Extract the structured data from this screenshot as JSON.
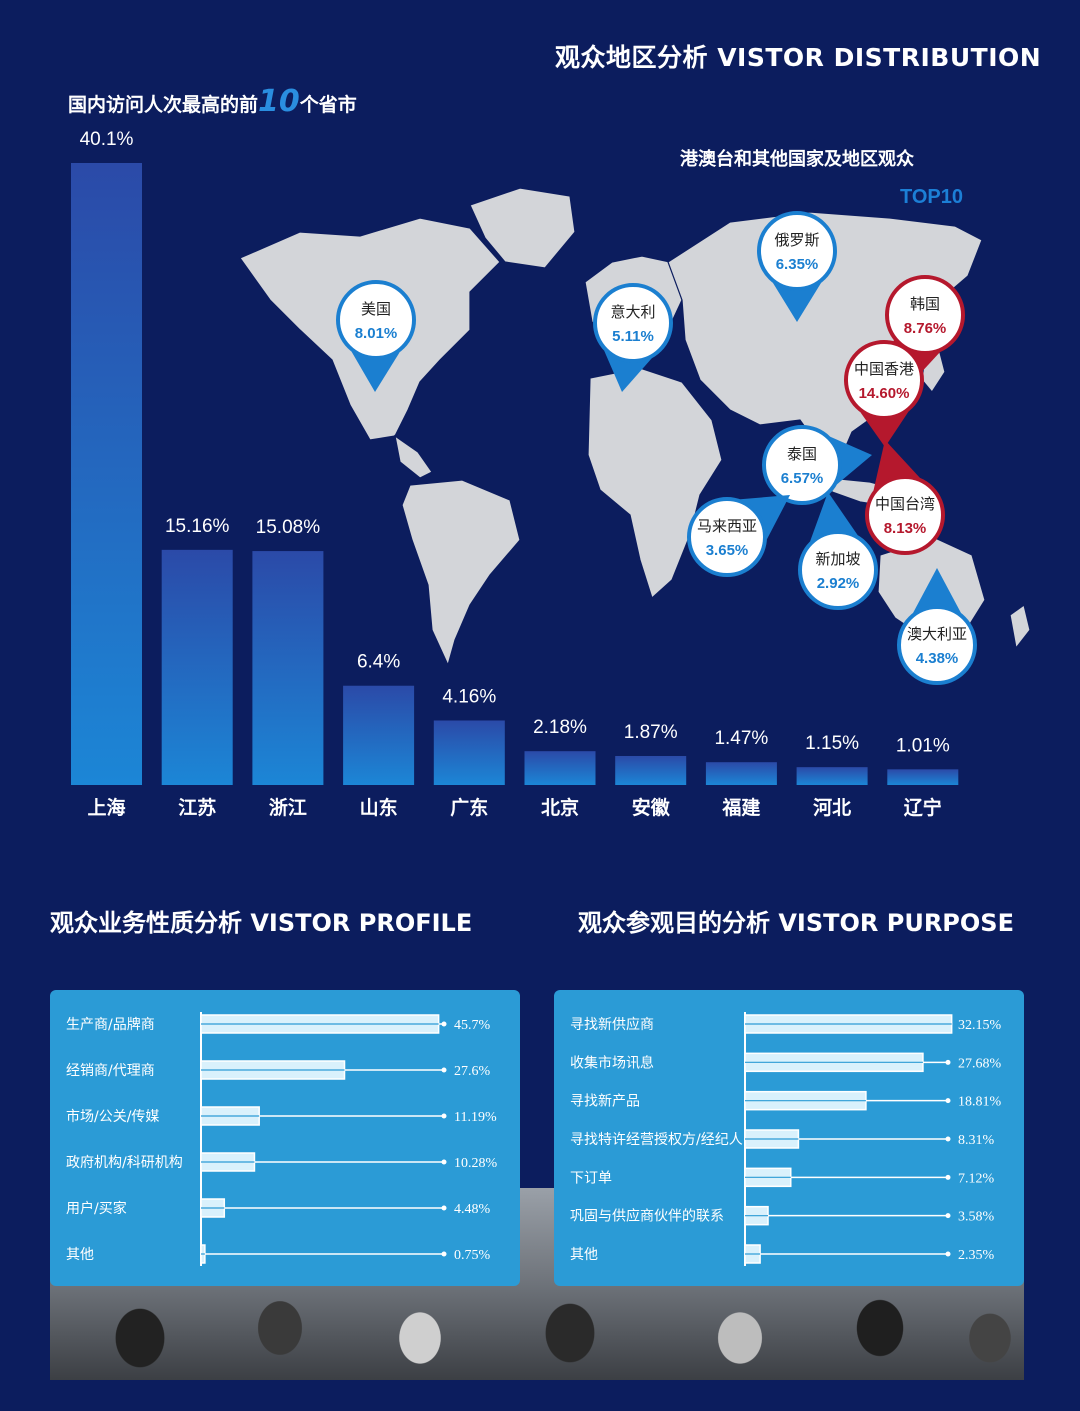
{
  "header": {
    "title": "观众地区分析 VISTOR DISTRIBUTION",
    "bar_title_pre": "国内访问人次最高的前",
    "bar_title_num": "10",
    "bar_title_post": "个省市",
    "map_subtitle": "港澳台和其他国家及地区观众",
    "map_top10": "TOP10"
  },
  "sections": {
    "profile_title": "观众业务性质分析 VISTOR PROFILE",
    "purpose_title": "观众参观目的分析 VISTOR PURPOSE"
  },
  "colors": {
    "background": "#0c1d5e",
    "bar_top": "#2b4aa8",
    "bar_bottom": "#1c86d6",
    "panel": "#2b9bd6",
    "marker_blue": "#1b7fd0",
    "marker_red": "#b5182d"
  },
  "chart_data": [
    {
      "type": "bar",
      "title": "国内访问人次最高的前10个省市",
      "categories": [
        "上海",
        "江苏",
        "浙江",
        "山东",
        "广东",
        "北京",
        "安徽",
        "福建",
        "河北",
        "辽宁"
      ],
      "values": [
        40.1,
        15.16,
        15.08,
        6.4,
        4.16,
        2.18,
        1.87,
        1.47,
        1.15,
        1.01
      ],
      "value_labels": [
        "40.1%",
        "15.16%",
        "15.08%",
        "6.4%",
        "4.16%",
        "2.18%",
        "1.87%",
        "1.47%",
        "1.15%",
        "1.01%"
      ],
      "ylim": [
        0,
        40.1
      ],
      "grid": false
    },
    {
      "type": "map",
      "title": "港澳台和其他国家及地区观众",
      "subtitle": "TOP10",
      "points": [
        {
          "name": "美国",
          "value": 8.01,
          "label": "8.01%",
          "highlight": false
        },
        {
          "name": "意大利",
          "value": 5.11,
          "label": "5.11%",
          "highlight": false
        },
        {
          "name": "俄罗斯",
          "value": 6.35,
          "label": "6.35%",
          "highlight": false
        },
        {
          "name": "韩国",
          "value": 8.76,
          "label": "8.76%",
          "highlight": true
        },
        {
          "name": "中国香港",
          "value": 14.6,
          "label": "14.60%",
          "highlight": true
        },
        {
          "name": "泰国",
          "value": 6.57,
          "label": "6.57%",
          "highlight": false
        },
        {
          "name": "中国台湾",
          "value": 8.13,
          "label": "8.13%",
          "highlight": true
        },
        {
          "name": "马来西亚",
          "value": 3.65,
          "label": "3.65%",
          "highlight": false
        },
        {
          "name": "新加坡",
          "value": 2.92,
          "label": "2.92%",
          "highlight": false
        },
        {
          "name": "澳大利亚",
          "value": 4.38,
          "label": "4.38%",
          "highlight": false
        }
      ]
    },
    {
      "type": "bar",
      "orientation": "horizontal",
      "title": "观众业务性质分析 VISTOR PROFILE",
      "categories": [
        "生产商/品牌商",
        "经销商/代理商",
        "市场/公关/传媒",
        "政府机构/科研机构",
        "用户/买家",
        "其他"
      ],
      "values": [
        45.7,
        27.6,
        11.19,
        10.28,
        4.48,
        0.75
      ],
      "value_labels": [
        "45.7%",
        "27.6%",
        "11.19%",
        "10.28%",
        "4.48%",
        "0.75%"
      ],
      "xlim": [
        0,
        50
      ]
    },
    {
      "type": "bar",
      "orientation": "horizontal",
      "title": "观众参观目的分析 VISTOR PURPOSE",
      "categories": [
        "寻找新供应商",
        "收集市场讯息",
        "寻找新产品",
        "寻找特许经营授权方/经纪人",
        "下订单",
        "巩固与供应商伙伴的联系",
        "其他"
      ],
      "values": [
        32.15,
        27.68,
        18.81,
        8.31,
        7.12,
        3.58,
        2.35
      ],
      "value_labels": [
        "32.15%",
        "27.68%",
        "18.81%",
        "8.31%",
        "7.12%",
        "3.58%",
        "2.35%"
      ],
      "xlim": [
        0,
        35
      ]
    }
  ]
}
